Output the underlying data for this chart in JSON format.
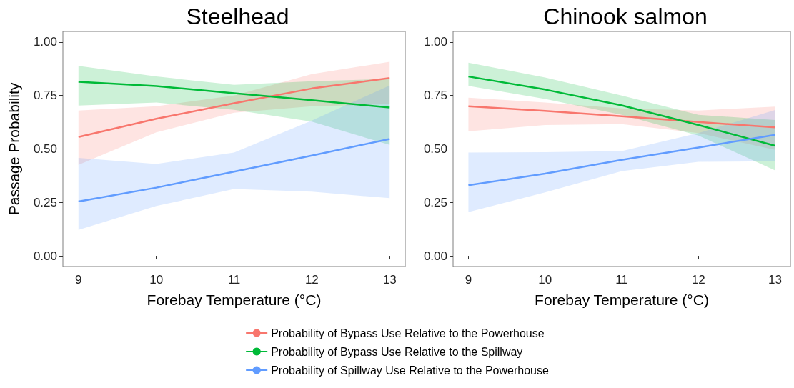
{
  "chart_data": [
    {
      "type": "line",
      "title": "Steelhead",
      "xlabel": "Forebay Temperature (°C)",
      "ylabel": "Passage Probability",
      "x": [
        9,
        10,
        11,
        12,
        13
      ],
      "series": [
        {
          "name": "Probability of Bypass Use Relative to the Powerhouse",
          "color": "#f8766d",
          "values": [
            0.556,
            0.641,
            0.714,
            0.783,
            0.832
          ],
          "lower": [
            0.426,
            0.578,
            0.67,
            0.7,
            0.71
          ],
          "upper": [
            0.68,
            0.7,
            0.75,
            0.85,
            0.908
          ]
        },
        {
          "name": "Probability of Bypass Use Relative to the Spillway",
          "color": "#00ba38",
          "values": [
            0.814,
            0.794,
            0.761,
            0.728,
            0.694
          ],
          "lower": [
            0.703,
            0.717,
            0.683,
            0.628,
            0.519
          ],
          "upper": [
            0.889,
            0.839,
            0.8,
            0.817,
            0.828
          ]
        },
        {
          "name": "Probability of Spillway Use Relative to the Powerhouse",
          "color": "#619cff",
          "values": [
            0.254,
            0.319,
            0.394,
            0.469,
            0.547
          ],
          "lower": [
            0.121,
            0.233,
            0.313,
            0.3,
            0.27
          ],
          "upper": [
            0.458,
            0.43,
            0.483,
            0.633,
            0.797
          ]
        }
      ],
      "xlim": [
        8.8,
        13.2
      ],
      "ylim": [
        -0.05,
        1.05
      ],
      "xticks": [
        9,
        10,
        11,
        12,
        13
      ],
      "yticks": [
        {
          "value": 0,
          "label": "0.00"
        },
        {
          "value": 0.25,
          "label": "0.25"
        },
        {
          "value": 0.5,
          "label": "0.50"
        },
        {
          "value": 0.75,
          "label": "0.75"
        },
        {
          "value": 1,
          "label": "1.00"
        }
      ],
      "grid": false,
      "legend": "bottom"
    },
    {
      "type": "line",
      "title": "Chinook salmon",
      "xlabel": "Forebay Temperature (°C)",
      "x": [
        9,
        10,
        11,
        12,
        13
      ],
      "series": [
        {
          "color": "#f8766d",
          "values": [
            0.7,
            0.678,
            0.653,
            0.626,
            0.601
          ],
          "lower": [
            0.583,
            0.612,
            0.616,
            0.574,
            0.496
          ],
          "upper": [
            0.74,
            0.717,
            0.69,
            0.68,
            0.698
          ]
        },
        {
          "color": "#00ba38",
          "values": [
            0.839,
            0.778,
            0.704,
            0.612,
            0.515
          ],
          "lower": [
            0.795,
            0.734,
            0.66,
            0.563,
            0.4
          ],
          "upper": [
            0.904,
            0.834,
            0.75,
            0.66,
            0.635
          ]
        },
        {
          "color": "#619cff",
          "values": [
            0.33,
            0.385,
            0.449,
            0.507,
            0.566
          ],
          "lower": [
            0.205,
            0.297,
            0.396,
            0.44,
            0.442
          ],
          "upper": [
            0.483,
            0.485,
            0.49,
            0.574,
            0.682
          ]
        }
      ],
      "xlim": [
        8.8,
        13.2
      ],
      "ylim": [
        -0.05,
        1.05
      ],
      "xticks": [
        9,
        10,
        11,
        12,
        13
      ],
      "yticks": [
        {
          "value": 0,
          "label": "0.00"
        },
        {
          "value": 0.25,
          "label": "0.25"
        },
        {
          "value": 0.5,
          "label": "0.50"
        },
        {
          "value": 0.75,
          "label": "0.75"
        },
        {
          "value": 1,
          "label": "1.00"
        }
      ],
      "grid": false
    }
  ]
}
